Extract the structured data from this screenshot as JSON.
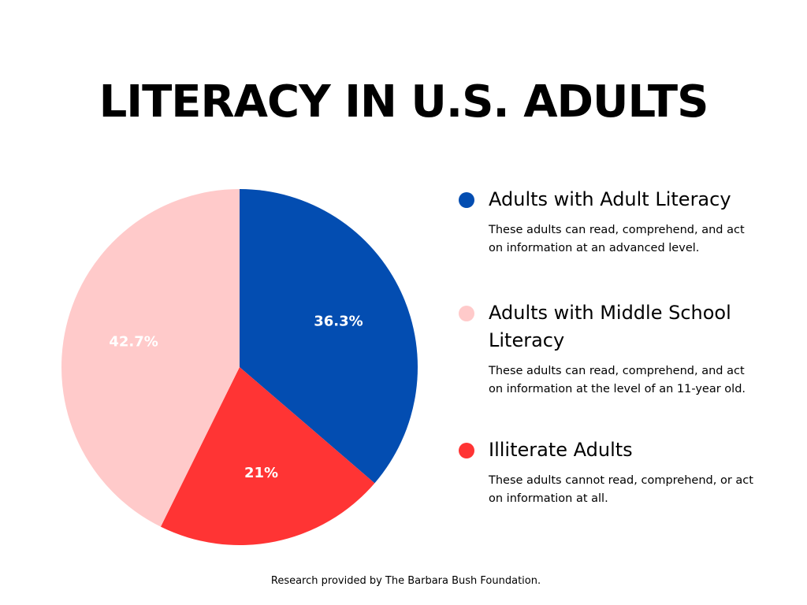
{
  "title": "LITERACY IN U.S. ADULTS",
  "footer": "Research provided by The Barbara Bush Foundation.",
  "chart_data": {
    "type": "pie",
    "title": "LITERACY IN U.S. ADULTS",
    "start_angle_deg": 0,
    "direction": "clockwise",
    "legend_position": "right",
    "slices": [
      {
        "label": "Adults with Adult Literacy",
        "value": 36.3,
        "value_label": "36.3%",
        "color": "#034db1",
        "description": "These adults can read, comprehend, and act on information at an advanced level."
      },
      {
        "label": "Illiterate Adults",
        "value": 21,
        "value_label": "21%",
        "color": "#ff3434",
        "description": "These adults cannot read, comprehend, or act on information at all."
      },
      {
        "label": "Adults with Middle School Literacy",
        "value": 42.7,
        "value_label": "42.7%",
        "color": "#ffcaca",
        "description": "These adults can read, comprehend, and act on information at the level of an 11-year old."
      }
    ]
  },
  "legend": [
    {
      "label": "Adults with Adult Literacy",
      "color": "#034db1",
      "description": "These adults can read, comprehend, and act on information at an advanced level."
    },
    {
      "label": "Adults with Middle School Literacy",
      "color": "#ffcaca",
      "description": "These adults can read, comprehend, and act on information at the level of an 11-year old."
    },
    {
      "label": "Illiterate Adults",
      "color": "#ff3434",
      "description": "These adults cannot read, comprehend, or act on information at all."
    }
  ]
}
